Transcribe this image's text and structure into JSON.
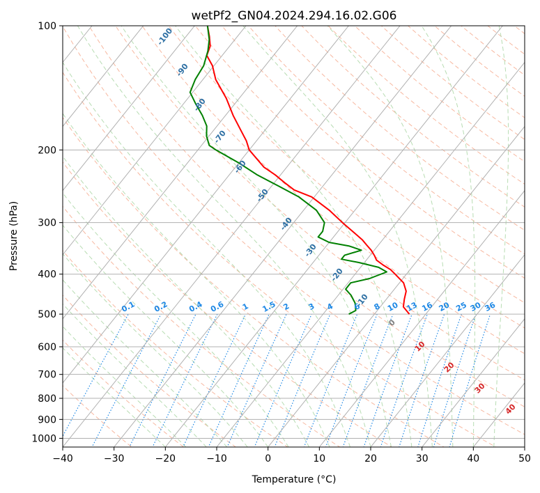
{
  "chart_data": {
    "type": "skew-t",
    "title": "wetPf2_GN04.2024.294.16.02.G06",
    "xlabel": "Temperature (°C)",
    "ylabel": "Pressure (hPa)",
    "xlim": [
      -40,
      50
    ],
    "ylim": [
      1050,
      100
    ],
    "x_ticks": [
      -40,
      -30,
      -20,
      -10,
      0,
      10,
      20,
      30,
      40,
      50
    ],
    "y_ticks": [
      100,
      200,
      300,
      400,
      500,
      600,
      700,
      800,
      900,
      1000
    ],
    "grid": true,
    "temperature_profile": {
      "color": "#ff0000",
      "points": [
        {
          "p": 500,
          "t": 6.8
        },
        {
          "p": 480,
          "t": 4.5
        },
        {
          "p": 460,
          "t": 3.5
        },
        {
          "p": 440,
          "t": 2.6
        },
        {
          "p": 420,
          "t": 0.8
        },
        {
          "p": 400,
          "t": -2.2
        },
        {
          "p": 390,
          "t": -3.8
        },
        {
          "p": 380,
          "t": -6.0
        },
        {
          "p": 370,
          "t": -8.0
        },
        {
          "p": 360,
          "t": -9.2
        },
        {
          "p": 350,
          "t": -10.6
        },
        {
          "p": 340,
          "t": -12.3
        },
        {
          "p": 330,
          "t": -14.0
        },
        {
          "p": 300,
          "t": -20.5
        },
        {
          "p": 280,
          "t": -25.0
        },
        {
          "p": 260,
          "t": -30.5
        },
        {
          "p": 250,
          "t": -35.0
        },
        {
          "p": 240,
          "t": -38.0
        },
        {
          "p": 230,
          "t": -41.0
        },
        {
          "p": 220,
          "t": -44.5
        },
        {
          "p": 200,
          "t": -50.0
        },
        {
          "p": 190,
          "t": -52.0
        },
        {
          "p": 180,
          "t": -54.5
        },
        {
          "p": 165,
          "t": -58.5
        },
        {
          "p": 150,
          "t": -62.5
        },
        {
          "p": 135,
          "t": -67.5
        },
        {
          "p": 125,
          "t": -70.3
        },
        {
          "p": 118,
          "t": -73.0
        },
        {
          "p": 112,
          "t": -73.8
        },
        {
          "p": 106,
          "t": -75.5
        },
        {
          "p": 100,
          "t": -77.5
        }
      ]
    },
    "dewpoint_profile": {
      "color": "#008000",
      "points": [
        {
          "p": 500,
          "t": -5.0
        },
        {
          "p": 490,
          "t": -4.2
        },
        {
          "p": 470,
          "t": -5.5
        },
        {
          "p": 450,
          "t": -7.5
        },
        {
          "p": 435,
          "t": -9.5
        },
        {
          "p": 420,
          "t": -9.5
        },
        {
          "p": 410,
          "t": -6.5
        },
        {
          "p": 395,
          "t": -4.2
        },
        {
          "p": 385,
          "t": -6.5
        },
        {
          "p": 375,
          "t": -11.0
        },
        {
          "p": 368,
          "t": -15.0
        },
        {
          "p": 360,
          "t": -15.0
        },
        {
          "p": 350,
          "t": -12.5
        },
        {
          "p": 342,
          "t": -15.5
        },
        {
          "p": 335,
          "t": -20.0
        },
        {
          "p": 325,
          "t": -23.0
        },
        {
          "p": 315,
          "t": -23.0
        },
        {
          "p": 300,
          "t": -24.0
        },
        {
          "p": 280,
          "t": -27.5
        },
        {
          "p": 260,
          "t": -33.0
        },
        {
          "p": 245,
          "t": -38.5
        },
        {
          "p": 230,
          "t": -44.5
        },
        {
          "p": 215,
          "t": -50.0
        },
        {
          "p": 200,
          "t": -56.5
        },
        {
          "p": 195,
          "t": -58.5
        },
        {
          "p": 185,
          "t": -60.5
        },
        {
          "p": 175,
          "t": -62.0
        },
        {
          "p": 165,
          "t": -64.5
        },
        {
          "p": 155,
          "t": -67.5
        },
        {
          "p": 145,
          "t": -70.5
        },
        {
          "p": 135,
          "t": -71.5
        },
        {
          "p": 125,
          "t": -72.0
        },
        {
          "p": 115,
          "t": -73.5
        },
        {
          "p": 108,
          "t": -75.0
        },
        {
          "p": 100,
          "t": -77.5
        }
      ]
    },
    "dry_adiabat_labels": [
      "-100",
      "-90",
      "-80",
      "-70",
      "-60",
      "-50",
      "-40",
      "-30",
      "-20",
      "-10"
    ],
    "mixing_ratio_labels": [
      "0.1",
      "0.2",
      "0.4",
      "0.6",
      "1",
      "1.5",
      "2",
      "3",
      "4",
      "6",
      "8",
      "10",
      "13",
      "16",
      "20",
      "25",
      "30",
      "36"
    ],
    "moist_adiabat_labels": [
      "0",
      "10",
      "20",
      "30",
      "40"
    ]
  }
}
